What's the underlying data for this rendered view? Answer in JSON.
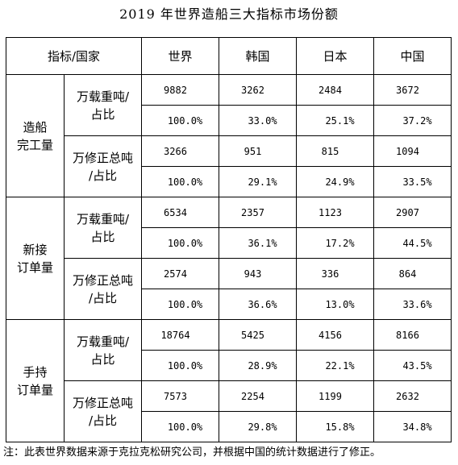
{
  "title": "2019 年世界造船三大指标市场份额",
  "header": {
    "corner": "指标/国家",
    "countries": [
      "世界",
      "韩国",
      "日本",
      "中国"
    ]
  },
  "groups": [
    {
      "label": [
        "造船",
        "完工量"
      ],
      "metrics": [
        {
          "label": [
            "万载重吨/",
            "占比"
          ],
          "values": [
            "9882",
            "3262",
            "2484",
            "3672"
          ],
          "shares": [
            "100.0%",
            "33.0%",
            "25.1%",
            "37.2%"
          ]
        },
        {
          "label": [
            "万修正总吨",
            "/占比"
          ],
          "values": [
            "3266",
            "951",
            "815",
            "1094"
          ],
          "shares": [
            "100.0%",
            "29.1%",
            "24.9%",
            "33.5%"
          ]
        }
      ]
    },
    {
      "label": [
        "新接",
        "订单量"
      ],
      "metrics": [
        {
          "label": [
            "万载重吨/",
            "占比"
          ],
          "values": [
            "6534",
            "2357",
            "1123",
            "2907"
          ],
          "shares": [
            "100.0%",
            "36.1%",
            "17.2%",
            "44.5%"
          ]
        },
        {
          "label": [
            "万修正总吨",
            "/占比"
          ],
          "values": [
            "2574",
            "943",
            "336",
            "864"
          ],
          "shares": [
            "100.0%",
            "36.6%",
            "13.0%",
            "33.6%"
          ]
        }
      ]
    },
    {
      "label": [
        "手持",
        "订单量"
      ],
      "metrics": [
        {
          "label": [
            "万载重吨/",
            "占比"
          ],
          "values": [
            "18764",
            "5425",
            "4156",
            "8166"
          ],
          "shares": [
            "100.0%",
            "28.9%",
            "22.1%",
            "43.5%"
          ]
        },
        {
          "label": [
            "万修正总吨",
            "/占比"
          ],
          "values": [
            "7573",
            "2254",
            "1199",
            "2632"
          ],
          "shares": [
            "100.0%",
            "29.8%",
            "15.8%",
            "34.8%"
          ]
        }
      ]
    }
  ],
  "footnote": "注：此表世界数据来源于克拉克松研究公司，并根据中国的统计数据进行了修正。"
}
